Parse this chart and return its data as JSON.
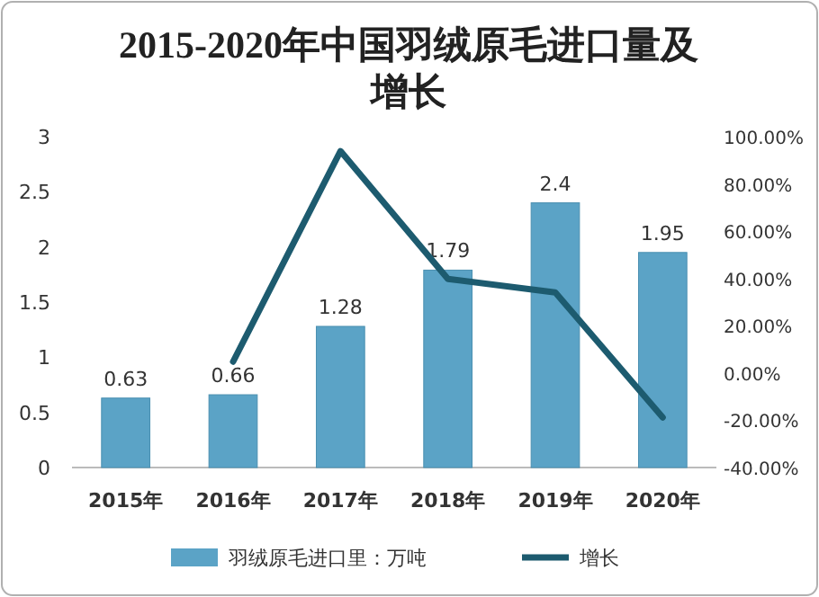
{
  "chart_data": {
    "type": "bar",
    "title": "2015-2020年中国羽绒原毛进口量及增长",
    "categories": [
      "2015年",
      "2016年",
      "2017年",
      "2018年",
      "2019年",
      "2020年"
    ],
    "series": [
      {
        "name": "羽绒原毛进口里：万吨",
        "color": "#5ba3c6",
        "values": [
          0.63,
          0.66,
          1.28,
          1.79,
          2.4,
          1.95
        ],
        "value_labels": [
          "0.63",
          "0.66",
          "1.28",
          "1.79",
          "2.4",
          "1.95"
        ]
      },
      {
        "name": "增长",
        "type": "line",
        "axis": "y2",
        "color": "#1d5b6f",
        "values": [
          null,
          4.8,
          93.9,
          39.8,
          34.1,
          -18.8
        ]
      }
    ],
    "ylim": [
      0,
      3
    ],
    "yticks": [
      0,
      0.5,
      1,
      1.5,
      2,
      2.5,
      3
    ],
    "y2lim": [
      -40,
      100
    ],
    "y2ticks": [
      {
        "value": -40,
        "label": "-40.00%"
      },
      {
        "value": -20,
        "label": "-20.00%"
      },
      {
        "value": 0,
        "label": "0.00%"
      },
      {
        "value": 20,
        "label": "20.00%"
      },
      {
        "value": 40,
        "label": "40.00%"
      },
      {
        "value": 60,
        "label": "60.00%"
      },
      {
        "value": 80,
        "label": "80.00%"
      },
      {
        "value": 100,
        "label": "100.00%"
      }
    ],
    "grid": false,
    "legend": "bottom",
    "marker": "none",
    "line_style": "solid"
  }
}
